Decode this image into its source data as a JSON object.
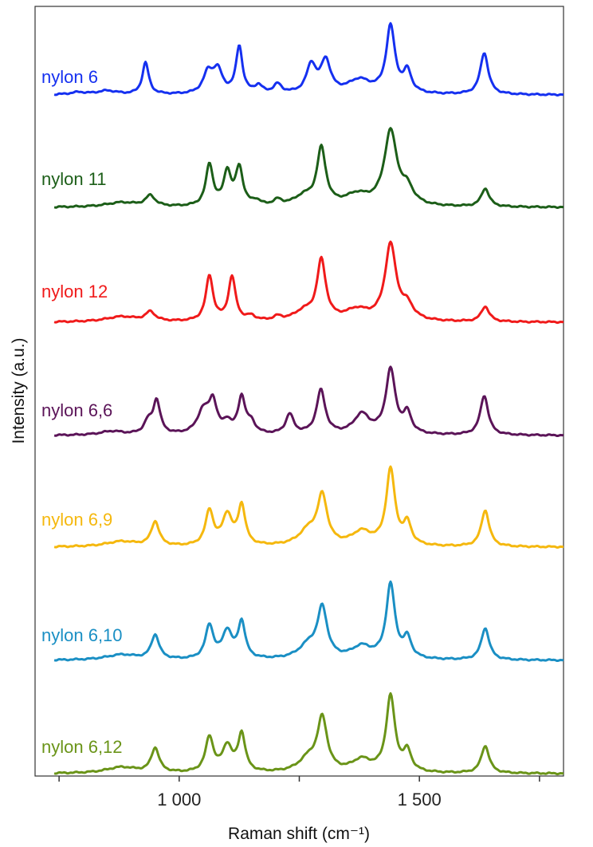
{
  "chart_data": {
    "type": "line",
    "xlabel": "Raman shift (cm⁻¹)",
    "ylabel": "Intensity (a.u.)",
    "xlim": [
      700,
      1800
    ],
    "x_ticks": [
      {
        "value": 750,
        "label": ""
      },
      {
        "value": 1000,
        "label": "1 000"
      },
      {
        "value": 1250,
        "label": ""
      },
      {
        "value": 1500,
        "label": "1 500"
      },
      {
        "value": 1750,
        "label": ""
      }
    ],
    "grid": false,
    "legend": "inline labels on the left",
    "series": [
      {
        "name": "nylon 6",
        "color": "#1530f0",
        "baseline": 0.02,
        "peaks": [
          [
            930,
            0.42,
            8
          ],
          [
            1060,
            0.27,
            12
          ],
          [
            1080,
            0.3,
            12
          ],
          [
            1125,
            0.62,
            8
          ],
          [
            1165,
            0.1,
            10
          ],
          [
            1205,
            0.12,
            10
          ],
          [
            1275,
            0.37,
            12
          ],
          [
            1305,
            0.42,
            12
          ],
          [
            1375,
            0.18,
            30
          ],
          [
            1440,
            0.88,
            11
          ],
          [
            1475,
            0.28,
            10
          ],
          [
            1635,
            0.55,
            10
          ],
          [
            850,
            0.05,
            25
          ],
          [
            790,
            0.03,
            20
          ]
        ]
      },
      {
        "name": "nylon 11",
        "color": "#1c5e18",
        "baseline": 0.02,
        "peaks": [
          [
            940,
            0.14,
            12
          ],
          [
            1063,
            0.55,
            9
          ],
          [
            1100,
            0.44,
            9
          ],
          [
            1125,
            0.5,
            9
          ],
          [
            1160,
            0.06,
            10
          ],
          [
            1205,
            0.07,
            10
          ],
          [
            1260,
            0.12,
            25
          ],
          [
            1296,
            0.74,
            11
          ],
          [
            1370,
            0.14,
            30
          ],
          [
            1440,
            0.98,
            16
          ],
          [
            1475,
            0.2,
            15
          ],
          [
            1637,
            0.24,
            10
          ],
          [
            880,
            0.06,
            40
          ]
        ]
      },
      {
        "name": "nylon 12",
        "color": "#f01a1a",
        "baseline": 0.02,
        "peaks": [
          [
            940,
            0.12,
            12
          ],
          [
            1063,
            0.6,
            9
          ],
          [
            1110,
            0.58,
            9
          ],
          [
            1150,
            0.06,
            10
          ],
          [
            1205,
            0.05,
            10
          ],
          [
            1260,
            0.12,
            25
          ],
          [
            1296,
            0.78,
            11
          ],
          [
            1370,
            0.14,
            30
          ],
          [
            1440,
            1.0,
            14
          ],
          [
            1475,
            0.18,
            15
          ],
          [
            1637,
            0.2,
            10
          ],
          [
            880,
            0.07,
            40
          ]
        ]
      },
      {
        "name": "nylon 6,6",
        "color": "#5b1458",
        "baseline": 0.02,
        "peaks": [
          [
            935,
            0.15,
            10
          ],
          [
            953,
            0.44,
            9
          ],
          [
            1050,
            0.3,
            15
          ],
          [
            1070,
            0.4,
            10
          ],
          [
            1100,
            0.14,
            10
          ],
          [
            1130,
            0.48,
            9
          ],
          [
            1150,
            0.14,
            10
          ],
          [
            1230,
            0.26,
            10
          ],
          [
            1295,
            0.58,
            11
          ],
          [
            1380,
            0.26,
            20
          ],
          [
            1440,
            0.85,
            12
          ],
          [
            1475,
            0.26,
            10
          ],
          [
            1635,
            0.52,
            10
          ],
          [
            860,
            0.05,
            30
          ]
        ]
      },
      {
        "name": "nylon 6,9",
        "color": "#f5b80e",
        "baseline": 0.02,
        "peaks": [
          [
            950,
            0.32,
            10
          ],
          [
            1063,
            0.46,
            10
          ],
          [
            1100,
            0.4,
            12
          ],
          [
            1130,
            0.52,
            9
          ],
          [
            1270,
            0.2,
            25
          ],
          [
            1298,
            0.62,
            12
          ],
          [
            1380,
            0.18,
            25
          ],
          [
            1440,
            1.0,
            11
          ],
          [
            1475,
            0.28,
            10
          ],
          [
            1637,
            0.48,
            10
          ],
          [
            880,
            0.07,
            40
          ]
        ]
      },
      {
        "name": "nylon 6,10",
        "color": "#1a8fc4",
        "baseline": 0.02,
        "peaks": [
          [
            950,
            0.32,
            10
          ],
          [
            1063,
            0.44,
            10
          ],
          [
            1100,
            0.36,
            12
          ],
          [
            1130,
            0.48,
            9
          ],
          [
            1270,
            0.18,
            25
          ],
          [
            1298,
            0.64,
            12
          ],
          [
            1380,
            0.16,
            25
          ],
          [
            1440,
            0.98,
            11
          ],
          [
            1475,
            0.26,
            10
          ],
          [
            1637,
            0.42,
            10
          ],
          [
            880,
            0.07,
            40
          ]
        ]
      },
      {
        "name": "nylon 6,12",
        "color": "#6a9418",
        "baseline": 0.02,
        "peaks": [
          [
            950,
            0.32,
            10
          ],
          [
            1063,
            0.46,
            10
          ],
          [
            1100,
            0.34,
            12
          ],
          [
            1130,
            0.5,
            9
          ],
          [
            1270,
            0.18,
            25
          ],
          [
            1298,
            0.68,
            12
          ],
          [
            1380,
            0.16,
            25
          ],
          [
            1440,
            1.0,
            11
          ],
          [
            1475,
            0.26,
            10
          ],
          [
            1637,
            0.36,
            10
          ],
          [
            880,
            0.08,
            40
          ]
        ]
      }
    ]
  }
}
